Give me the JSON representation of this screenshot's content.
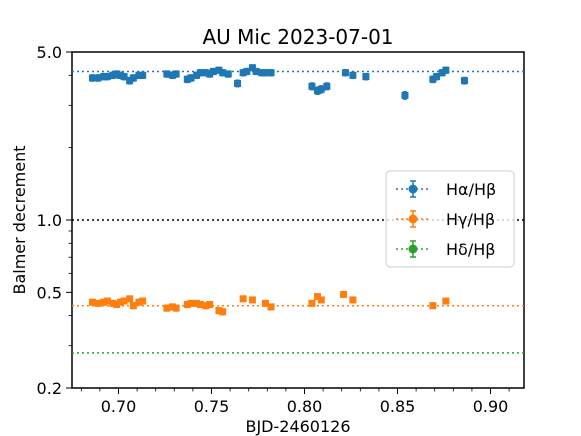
{
  "chart_data": {
    "type": "scatter",
    "title": "AU Mic 2023-07-01",
    "xlabel": "BJD-2460126",
    "ylabel": "Balmer decrement",
    "xlim": [
      0.675,
      0.918
    ],
    "ylim": [
      0.2,
      5.0
    ],
    "yscale": "log",
    "x_ticks": [
      0.7,
      0.75,
      0.8,
      0.85,
      0.9
    ],
    "x_tick_labels": [
      "0.70",
      "0.75",
      "0.80",
      "0.85",
      "0.90"
    ],
    "y_ticks": [
      0.2,
      0.5,
      1.0,
      5.0
    ],
    "y_tick_labels": [
      "0.2",
      "0.5",
      "1.0",
      "5.0"
    ],
    "grid": false,
    "legend_position": "center-right",
    "reference_lines": [
      {
        "y": 4.15,
        "color": "#1f77b4",
        "style": "dotted"
      },
      {
        "y": 1.0,
        "color": "#000000",
        "style": "dotted"
      },
      {
        "y": 0.44,
        "color": "#ff7f0e",
        "style": "dotted"
      },
      {
        "y": 0.28,
        "color": "#2ca02c",
        "style": "dotted"
      }
    ],
    "series": [
      {
        "name": "Hα/Hβ",
        "color": "#1f77b4",
        "x": [
          0.686,
          0.689,
          0.692,
          0.694,
          0.697,
          0.699,
          0.701,
          0.703,
          0.706,
          0.708,
          0.711,
          0.713,
          0.726,
          0.729,
          0.731,
          0.737,
          0.739,
          0.742,
          0.744,
          0.747,
          0.749,
          0.751,
          0.754,
          0.756,
          0.759,
          0.764,
          0.767,
          0.769,
          0.772,
          0.774,
          0.777,
          0.779,
          0.782,
          0.804,
          0.807,
          0.809,
          0.812,
          0.822,
          0.826,
          0.833,
          0.854,
          0.869,
          0.871,
          0.874,
          0.876,
          0.886
        ],
        "y": [
          3.9,
          3.9,
          3.95,
          3.95,
          4.0,
          4.05,
          4.0,
          3.95,
          3.8,
          3.9,
          4.0,
          4.0,
          4.05,
          4.0,
          4.05,
          3.85,
          3.9,
          4.0,
          4.1,
          4.1,
          4.05,
          4.15,
          4.2,
          4.1,
          4.05,
          3.7,
          4.1,
          4.15,
          4.3,
          4.15,
          4.1,
          4.1,
          4.1,
          3.6,
          3.45,
          3.5,
          3.6,
          4.1,
          4.0,
          3.95,
          3.3,
          3.85,
          3.95,
          4.1,
          4.2,
          3.8
        ],
        "yerr": 0.12
      },
      {
        "name": "Hγ/Hβ",
        "color": "#ff7f0e",
        "x": [
          0.686,
          0.689,
          0.692,
          0.694,
          0.697,
          0.699,
          0.701,
          0.703,
          0.706,
          0.708,
          0.711,
          0.713,
          0.726,
          0.729,
          0.731,
          0.737,
          0.739,
          0.742,
          0.744,
          0.747,
          0.749,
          0.754,
          0.756,
          0.767,
          0.772,
          0.779,
          0.782,
          0.804,
          0.807,
          0.809,
          0.821,
          0.826,
          0.869,
          0.876
        ],
        "y": [
          0.455,
          0.45,
          0.455,
          0.46,
          0.45,
          0.445,
          0.455,
          0.46,
          0.47,
          0.44,
          0.455,
          0.46,
          0.43,
          0.435,
          0.43,
          0.445,
          0.45,
          0.45,
          0.445,
          0.44,
          0.445,
          0.42,
          0.415,
          0.47,
          0.465,
          0.45,
          0.435,
          0.45,
          0.48,
          0.465,
          0.49,
          0.465,
          0.44,
          0.46
        ],
        "yerr": 0.012
      },
      {
        "name": "Hδ/Hβ",
        "color": "#2ca02c",
        "x": [],
        "y": []
      }
    ]
  }
}
